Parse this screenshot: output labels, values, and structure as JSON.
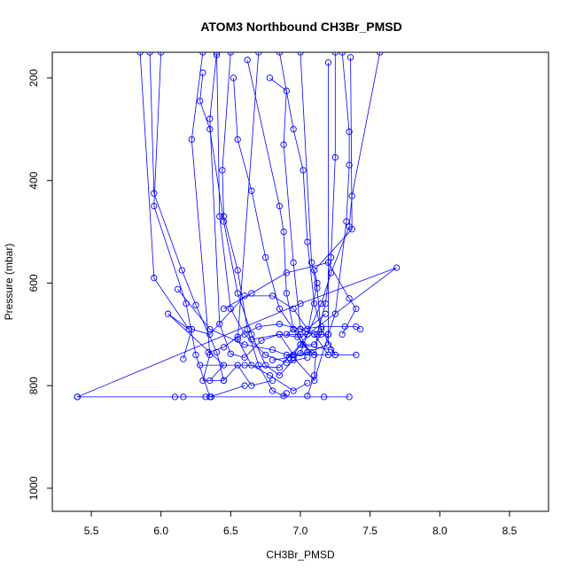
{
  "chart_data": {
    "type": "line",
    "title": "ATOM3 Northbound CH3Br_PMSD",
    "xlabel": "CH3Br_PMSD",
    "ylabel": "Pressure (mbar)",
    "xlim": [
      5.22,
      8.78
    ],
    "ylim": [
      1045,
      150
    ],
    "y_inverted": true,
    "x_ticks": [
      5.5,
      6.0,
      6.5,
      7.0,
      7.5,
      8.0,
      8.5
    ],
    "x_tick_labels": [
      "5.5",
      "6.0",
      "6.5",
      "7.0",
      "7.5",
      "8.0",
      "8.5"
    ],
    "y_ticks": [
      200,
      400,
      600,
      800,
      1000
    ],
    "y_tick_labels": [
      "200",
      "400",
      "600",
      "800",
      "1000"
    ],
    "grid": false,
    "legend": "none",
    "colors": {
      "series": "#0000ff",
      "axis": "#000000"
    },
    "series": [
      {
        "points": [
          [
            5.85,
            150
          ],
          [
            5.95,
            590
          ],
          [
            6.2,
            690
          ],
          [
            6.05,
            660
          ],
          [
            6.45,
            760
          ],
          [
            6.35,
            790
          ]
        ]
      },
      {
        "points": [
          [
            5.92,
            150
          ],
          [
            5.95,
            425
          ],
          [
            6.15,
            575
          ],
          [
            6.25,
            643
          ],
          [
            6.4,
            735
          ],
          [
            6.45,
            790
          ]
        ]
      },
      {
        "points": [
          [
            6.0,
            150
          ],
          [
            5.95,
            450
          ],
          [
            6.18,
            640
          ],
          [
            6.25,
            740
          ],
          [
            6.35,
            822
          ],
          [
            6.6,
            800
          ]
        ]
      },
      {
        "points": [
          [
            6.3,
            150
          ],
          [
            6.22,
            320
          ],
          [
            6.35,
            740
          ],
          [
            6.3,
            790
          ],
          [
            6.45,
            790
          ],
          [
            6.55,
            760
          ],
          [
            6.65,
            800
          ],
          [
            6.8,
            790
          ]
        ]
      },
      {
        "points": [
          [
            6.4,
            150
          ],
          [
            6.35,
            280
          ],
          [
            6.42,
            680
          ],
          [
            6.5,
            738
          ],
          [
            6.6,
            745
          ],
          [
            6.72,
            712
          ],
          [
            6.85,
            700
          ],
          [
            6.95,
            740
          ]
        ]
      },
      {
        "points": [
          [
            6.5,
            150
          ],
          [
            6.44,
            380
          ],
          [
            6.45,
            470
          ],
          [
            6.55,
            575
          ],
          [
            6.62,
            690
          ],
          [
            6.7,
            760
          ],
          [
            6.8,
            810
          ],
          [
            6.88,
            820
          ],
          [
            6.9,
            815
          ]
        ]
      },
      {
        "points": [
          [
            6.3,
            190
          ],
          [
            6.28,
            245
          ],
          [
            6.35,
            300
          ],
          [
            6.45,
            480
          ],
          [
            6.55,
            620
          ],
          [
            6.65,
            700
          ],
          [
            6.75,
            760
          ],
          [
            6.85,
            780
          ],
          [
            6.95,
            750
          ]
        ]
      },
      {
        "points": [
          [
            6.52,
            200
          ],
          [
            6.55,
            320
          ],
          [
            6.65,
            420
          ],
          [
            6.75,
            550
          ],
          [
            6.85,
            650
          ],
          [
            6.95,
            690
          ],
          [
            7.0,
            700
          ],
          [
            7.05,
            735
          ]
        ]
      },
      {
        "points": [
          [
            6.4,
            155
          ],
          [
            6.42,
            470
          ],
          [
            6.5,
            650
          ],
          [
            6.6,
            700
          ],
          [
            6.75,
            740
          ],
          [
            6.9,
            755
          ],
          [
            7.05,
            745
          ]
        ]
      },
      {
        "points": [
          [
            6.62,
            165
          ],
          [
            6.85,
            450
          ],
          [
            6.88,
            500
          ],
          [
            6.9,
            620
          ],
          [
            6.95,
            690
          ],
          [
            7.02,
            720
          ],
          [
            7.1,
            740
          ]
        ]
      },
      {
        "points": [
          [
            6.7,
            150
          ],
          [
            6.55,
            710
          ],
          [
            6.65,
            760
          ],
          [
            6.78,
            780
          ],
          [
            6.95,
            810
          ],
          [
            7.05,
            795
          ]
        ]
      },
      {
        "points": [
          [
            6.78,
            200
          ],
          [
            6.9,
            225
          ],
          [
            6.88,
            330
          ],
          [
            6.95,
            560
          ],
          [
            7.0,
            690
          ],
          [
            7.1,
            700
          ],
          [
            7.2,
            740
          ]
        ]
      },
      {
        "points": [
          [
            6.85,
            150
          ],
          [
            6.95,
            300
          ],
          [
            7.02,
            380
          ],
          [
            7.05,
            520
          ],
          [
            7.1,
            640
          ],
          [
            7.15,
            690
          ],
          [
            7.25,
            740
          ]
        ]
      },
      {
        "points": [
          [
            7.0,
            150
          ],
          [
            7.08,
            560
          ],
          [
            7.12,
            610
          ],
          [
            7.15,
            700
          ],
          [
            7.1,
            720
          ],
          [
            7.0,
            720
          ]
        ]
      },
      {
        "points": [
          [
            7.25,
            150
          ],
          [
            7.25,
            355
          ],
          [
            7.22,
            550
          ],
          [
            7.18,
            640
          ],
          [
            7.12,
            700
          ],
          [
            7.1,
            780
          ],
          [
            7.05,
            820
          ]
        ]
      },
      {
        "points": [
          [
            7.3,
            150
          ],
          [
            7.35,
            305
          ],
          [
            7.35,
            370
          ],
          [
            7.33,
            480
          ],
          [
            7.25,
            660
          ],
          [
            7.2,
            700
          ],
          [
            7.1,
            700
          ],
          [
            7.0,
            690
          ]
        ]
      },
      {
        "points": [
          [
            7.57,
            150
          ],
          [
            7.37,
            430
          ],
          [
            7.35,
            490
          ],
          [
            7.22,
            580
          ],
          [
            7.15,
            640
          ],
          [
            7.05,
            700
          ],
          [
            6.95,
            740
          ]
        ]
      },
      {
        "points": [
          [
            7.36,
            160
          ],
          [
            7.37,
            495
          ],
          [
            7.1,
            575
          ],
          [
            7.12,
            600
          ],
          [
            7.05,
            700
          ],
          [
            7.0,
            737
          ]
        ]
      },
      {
        "points": [
          [
            7.2,
            170
          ],
          [
            7.2,
            720
          ],
          [
            7.05,
            735
          ],
          [
            6.9,
            740
          ],
          [
            7.4,
            740
          ]
        ]
      },
      {
        "points": [
          [
            5.4,
            822
          ],
          [
            6.32,
            822
          ],
          [
            6.36,
            822
          ],
          [
            7.35,
            822
          ],
          [
            7.17,
            822
          ],
          [
            6.1,
            822
          ],
          [
            6.16,
            822
          ]
        ]
      },
      {
        "points": [
          [
            5.4,
            822
          ],
          [
            7.0,
            640
          ],
          [
            7.69,
            570
          ],
          [
            7.05,
            700
          ],
          [
            6.9,
            700
          ],
          [
            6.95,
            690
          ]
        ]
      },
      {
        "points": [
          [
            6.34,
            735
          ],
          [
            6.45,
            725
          ],
          [
            6.55,
            705
          ],
          [
            6.7,
            685
          ],
          [
            6.85,
            680
          ],
          [
            7.0,
            690
          ],
          [
            7.15,
            685
          ],
          [
            7.32,
            685
          ],
          [
            7.4,
            685
          ],
          [
            7.43,
            690
          ]
        ]
      },
      {
        "points": [
          [
            6.16,
            748
          ],
          [
            6.22,
            690
          ],
          [
            6.35,
            700
          ],
          [
            6.6,
            625
          ],
          [
            6.8,
            625
          ],
          [
            6.95,
            650
          ],
          [
            7.05,
            690
          ],
          [
            7.18,
            660
          ]
        ]
      },
      {
        "points": [
          [
            6.45,
            650
          ],
          [
            6.65,
            620
          ],
          [
            6.9,
            580
          ],
          [
            7.2,
            560
          ],
          [
            7.35,
            630
          ],
          [
            7.4,
            650
          ],
          [
            7.3,
            700
          ]
        ]
      },
      {
        "points": [
          [
            6.12,
            612
          ],
          [
            6.35,
            690
          ],
          [
            6.6,
            720
          ],
          [
            6.8,
            730
          ],
          [
            6.95,
            745
          ],
          [
            7.1,
            790
          ],
          [
            7.2,
            700
          ]
        ]
      },
      {
        "points": [
          [
            6.28,
            760
          ],
          [
            6.6,
            760
          ],
          [
            6.85,
            765
          ],
          [
            7.0,
            720
          ],
          [
            7.22,
            730
          ],
          [
            7.25,
            740
          ]
        ]
      },
      {
        "points": [
          [
            6.65,
            710
          ],
          [
            6.85,
            700
          ],
          [
            6.98,
            705
          ],
          [
            7.08,
            735
          ],
          [
            6.92,
            745
          ],
          [
            6.8,
            750
          ]
        ]
      }
    ]
  }
}
